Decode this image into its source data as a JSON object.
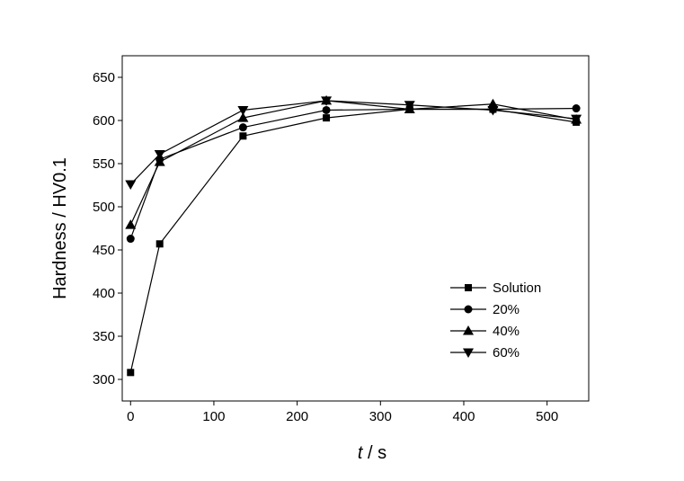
{
  "chart_data": {
    "type": "line",
    "xlabel_italic": "t",
    "xlabel_rest": " / s",
    "ylabel": "Hardness / HV0.1",
    "xlim": [
      -10,
      550
    ],
    "ylim": [
      275,
      675
    ],
    "xticks": [
      0,
      100,
      200,
      300,
      400,
      500
    ],
    "yticks": [
      300,
      350,
      400,
      450,
      500,
      550,
      600,
      650
    ],
    "legend_position": "bottom-right",
    "series": [
      {
        "name": "Solution",
        "marker": "square",
        "x": [
          0,
          35,
          135,
          235,
          335,
          435,
          535
        ],
        "y": [
          308,
          457,
          582,
          603,
          613,
          613,
          598
        ]
      },
      {
        "name": "20%",
        "marker": "circle",
        "x": [
          0,
          35,
          135,
          235,
          335,
          435,
          535
        ],
        "y": [
          463,
          555,
          592,
          612,
          613,
          613,
          614
        ]
      },
      {
        "name": "40%",
        "marker": "triangle-up",
        "x": [
          0,
          35,
          135,
          235,
          335,
          435,
          535
        ],
        "y": [
          479,
          552,
          603,
          623,
          613,
          619,
          601
        ]
      },
      {
        "name": "60%",
        "marker": "triangle-down",
        "x": [
          0,
          35,
          135,
          235,
          335,
          435,
          535
        ],
        "y": [
          526,
          561,
          612,
          623,
          618,
          612,
          602
        ]
      }
    ]
  }
}
